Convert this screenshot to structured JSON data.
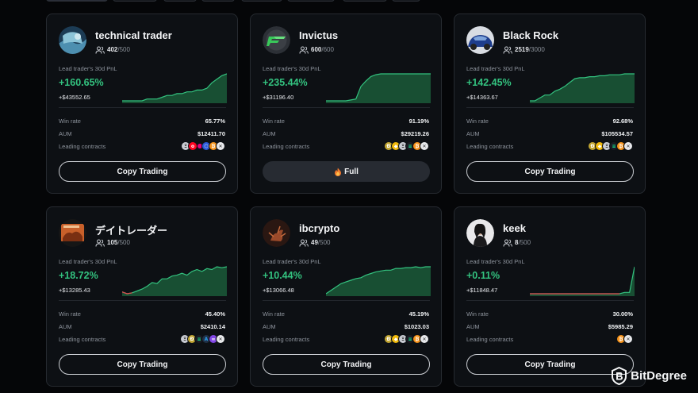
{
  "cards": [
    {
      "name": "technical trader",
      "followers_current": "402",
      "followers_max": "500",
      "pnl_label": "Lead trader's 30d PnL",
      "pnl_percent": "+160.65%",
      "pnl_amount": "+$43552.65",
      "win_rate_label": "Win rate",
      "win_rate": "65.77%",
      "aum_label": "AUM",
      "aum": "$12411.70",
      "contracts_label": "Leading contracts",
      "contract_coins": [
        "eth-icon",
        "op-icon",
        "dot-icon",
        "link-icon",
        "btc-icon",
        "xrp-icon"
      ],
      "button_label": "Copy Trading",
      "button_state": "available",
      "pnl_series": [
        0,
        0,
        0,
        0,
        0,
        1,
        1,
        1,
        2,
        3,
        3,
        4,
        4,
        5,
        5,
        6,
        6,
        7,
        10,
        12,
        14,
        15
      ]
    },
    {
      "name": "Invictus",
      "followers_current": "600",
      "followers_max": "600",
      "pnl_label": "Lead trader's 30d PnL",
      "pnl_percent": "+235.44%",
      "pnl_amount": "+$31196.40",
      "win_rate_label": "Win rate",
      "win_rate": "91.19%",
      "aum_label": "AUM",
      "aum": "$29219.26",
      "contracts_label": "Leading contracts",
      "contract_coins": [
        "doge-icon",
        "bnb-icon",
        "eth-icon",
        "sol-icon",
        "btc-icon",
        "xrp-icon"
      ],
      "button_label": "Full",
      "button_state": "full",
      "pnl_series": [
        0,
        0,
        0,
        0,
        0,
        1,
        2,
        16,
        22,
        27,
        29,
        30,
        30,
        30,
        30,
        30,
        30,
        30,
        30,
        30,
        30,
        30
      ]
    },
    {
      "name": "Black Rock",
      "followers_current": "2519",
      "followers_max": "3000",
      "pnl_label": "Lead trader's 30d PnL",
      "pnl_percent": "+142.45%",
      "pnl_amount": "+$14363.67",
      "win_rate_label": "Win rate",
      "win_rate": "92.68%",
      "aum_label": "AUM",
      "aum": "$105534.57",
      "contracts_label": "Leading contracts",
      "contract_coins": [
        "doge-icon",
        "bnb-icon",
        "eth-icon",
        "sol-icon",
        "btc-icon",
        "xrp-icon"
      ],
      "button_label": "Copy Trading",
      "button_state": "available",
      "pnl_series": [
        0,
        0,
        3,
        6,
        6,
        10,
        12,
        15,
        19,
        23,
        24,
        24,
        25,
        25,
        26,
        26,
        27,
        27,
        27,
        28,
        28,
        28
      ]
    },
    {
      "name": "デイトレーダー",
      "followers_current": "105",
      "followers_max": "500",
      "pnl_label": "Lead trader's 30d PnL",
      "pnl_percent": "+18.72%",
      "pnl_amount": "+$13285.43",
      "win_rate_label": "Win rate",
      "win_rate": "45.40%",
      "aum_label": "AUM",
      "aum": "$2410.14",
      "contracts_label": "Leading contracts",
      "contract_coins": [
        "eth-icon",
        "doge-icon",
        "sol-icon",
        "arb-icon",
        "matic-icon",
        "xrp-icon"
      ],
      "button_label": "Copy Trading",
      "button_state": "available",
      "pnl_series": [
        0,
        -2,
        -1,
        1,
        3,
        6,
        10,
        9,
        14,
        14,
        17,
        18,
        20,
        18,
        22,
        24,
        22,
        25,
        24,
        27,
        26,
        27
      ]
    },
    {
      "name": "ibcrypto",
      "followers_current": "49",
      "followers_max": "500",
      "pnl_label": "Lead trader's 30d PnL",
      "pnl_percent": "+10.44%",
      "pnl_amount": "+$13066.48",
      "win_rate_label": "Win rate",
      "win_rate": "45.19%",
      "aum_label": "AUM",
      "aum": "$1023.03",
      "contracts_label": "Leading contracts",
      "contract_coins": [
        "doge-icon",
        "bnb-icon",
        "eth-icon",
        "sol-icon",
        "btc-icon",
        "xrp-icon"
      ],
      "button_label": "Copy Trading",
      "button_state": "available",
      "pnl_series": [
        0,
        4,
        8,
        12,
        14,
        16,
        18,
        19,
        22,
        24,
        26,
        27,
        28,
        28,
        30,
        30,
        31,
        31,
        32,
        31,
        32,
        32
      ]
    },
    {
      "name": "keek",
      "followers_current": "8",
      "followers_max": "500",
      "pnl_label": "Lead trader's 30d PnL",
      "pnl_percent": "+0.11%",
      "pnl_amount": "+$11848.47",
      "win_rate_label": "Win rate",
      "win_rate": "30.00%",
      "aum_label": "AUM",
      "aum": "$5985.29",
      "contracts_label": "Leading contracts",
      "contract_coins": [
        "btc-icon",
        "xrp-icon"
      ],
      "button_label": "Copy Trading",
      "button_state": "available",
      "pnl_series": [
        0,
        0,
        0,
        0,
        0,
        0,
        0,
        0,
        0,
        0,
        0,
        0,
        0,
        0,
        0,
        0,
        0,
        0,
        0,
        1,
        1,
        20
      ]
    }
  ],
  "brand": {
    "name": "BitDegree"
  },
  "colors": {
    "positive": "#33c27f",
    "negative": "#e0474c",
    "card_bg": "#0d1014",
    "page_bg": "#050608"
  }
}
